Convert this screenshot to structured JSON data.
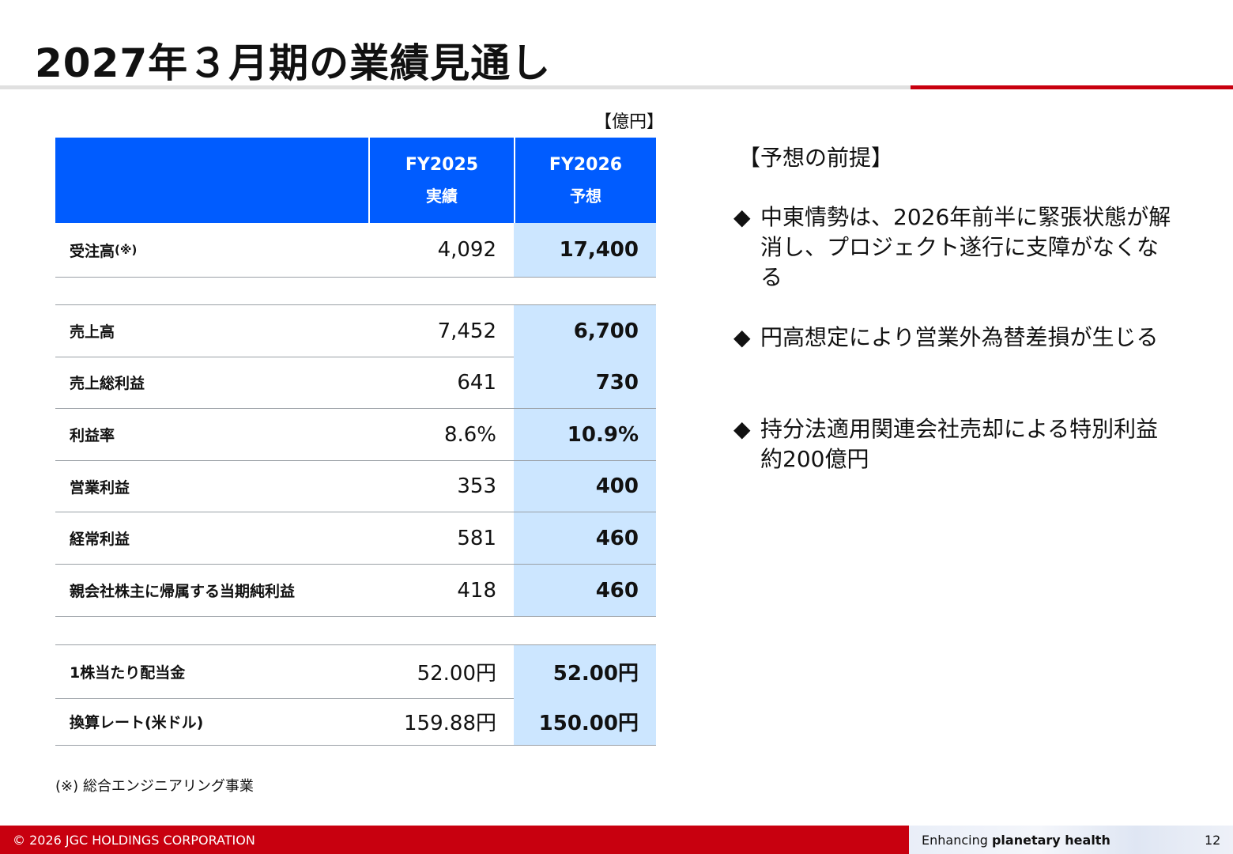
{
  "title": "2027年３月期の業績見通し",
  "unit": "【億円】",
  "table": {
    "col1_line1": "FY2025",
    "col1_line2": "実績",
    "col2_line1": "FY2026",
    "col2_line2": "予想",
    "orders": {
      "label": "受注高",
      "label_note": "(※)",
      "v1": "4,092",
      "v2": "17,400"
    },
    "rows": [
      {
        "label": "売上高",
        "v1": "7,452",
        "v2": "6,700"
      },
      {
        "label": "売上総利益",
        "v1": "641",
        "v2": "730"
      },
      {
        "label": "利益率",
        "v1": "8.6%",
        "v2": "10.9%"
      },
      {
        "label": "営業利益",
        "v1": "353",
        "v2": "400"
      },
      {
        "label": "経常利益",
        "v1": "581",
        "v2": "460"
      },
      {
        "label": "親会社株主に帰属する当期純利益",
        "v1": "418",
        "v2": "460"
      }
    ],
    "other": [
      {
        "label": "1株当たり配当金",
        "v1": "52.00円",
        "v2": "52.00円"
      },
      {
        "label": "換算レート(米ドル)",
        "v1": "159.88円",
        "v2": "150.00円"
      }
    ]
  },
  "footnote": "(※) 総合エンジニアリング事業",
  "premises": {
    "title": "【予想の前提】",
    "bullet_mark": "◆",
    "items": [
      "中東情勢は、2026年前半に緊張状態が解消し、プロジェクト遂行に支障がなくなる",
      "円高想定により営業外為替差損が生じる",
      "持分法適用関連会社売却による特別利益約200億円"
    ]
  },
  "footer": {
    "copyright": "© 2026 JGC HOLDINGS CORPORATION",
    "tagline_normal": "Enhancing ",
    "tagline_bold": "planetary health",
    "page_number": "12"
  },
  "colors": {
    "header_blue": "#005cff",
    "forecast_cell": "#cce6ff",
    "brand_red": "#c8000f"
  }
}
